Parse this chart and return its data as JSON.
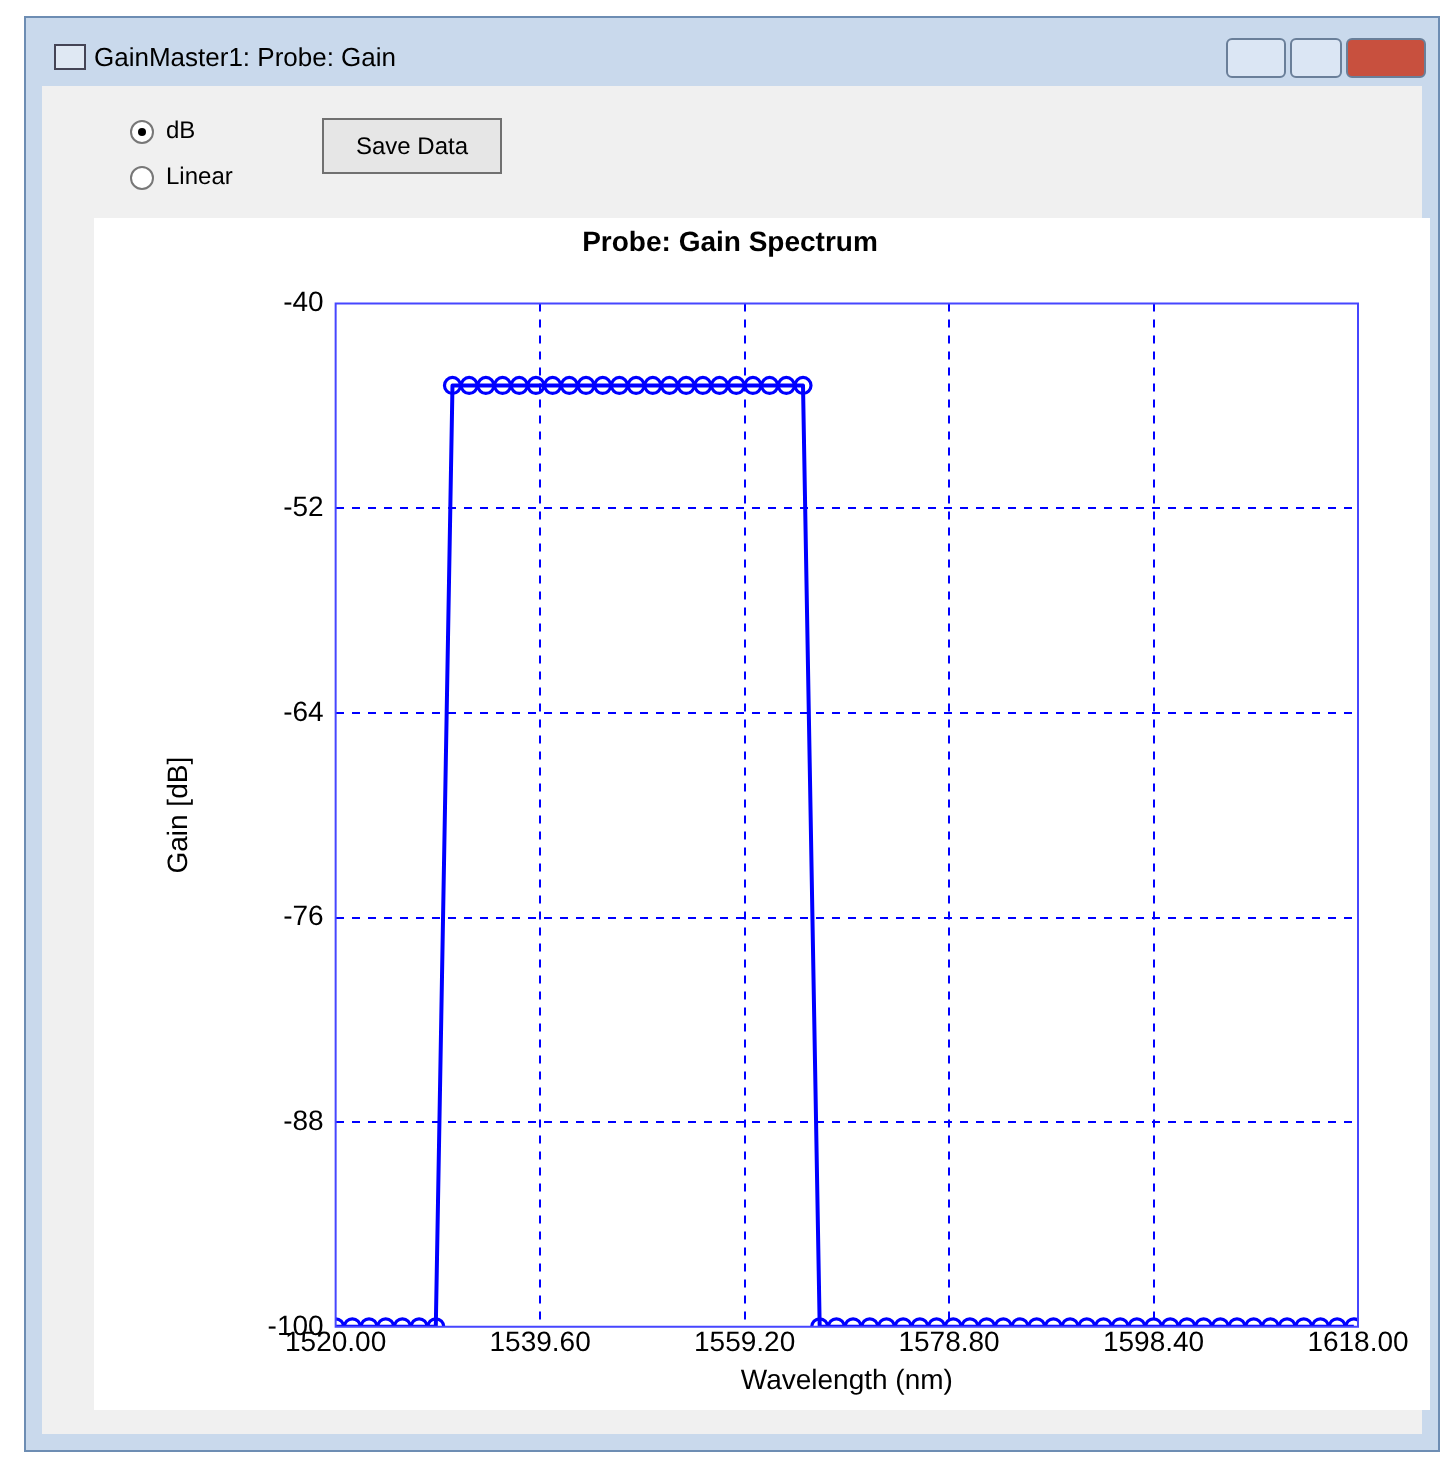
{
  "chart_data": {
    "type": "line",
    "title": "Probe: Gain Spectrum",
    "xlabel": "Wavelength (nm)",
    "ylabel": "Gain [dB]",
    "annotations": [
      "GainMaster1:  Probe:  Gain",
      "dB",
      "Linear",
      "Save Data"
    ],
    "x": [
      1520,
      1521.6,
      1523.2,
      1524.8,
      1526.4,
      1528,
      1529.6,
      1531.2,
      1532.8,
      1534.4,
      1536,
      1537.6,
      1539.2,
      1540.8,
      1542.4,
      1544,
      1545.6,
      1547.2,
      1548.8,
      1550.4,
      1552,
      1553.6,
      1555.2,
      1556.8,
      1558.4,
      1560,
      1561.6,
      1563.2,
      1564.8,
      1566.4,
      1568,
      1569.6,
      1571.2,
      1572.8,
      1574.4,
      1576,
      1577.6,
      1579.2,
      1580.8,
      1582.4,
      1584,
      1585.6,
      1587.2,
      1588.8,
      1590.4,
      1592,
      1593.6,
      1595.2,
      1596.8,
      1598.4,
      1600,
      1601.6,
      1603.2,
      1604.8,
      1606.4,
      1608,
      1609.6,
      1611.2,
      1612.8,
      1614.4,
      1616,
      1617.6
    ],
    "series": [
      {
        "color": "#0000ff",
        "values": [
          -100,
          -100,
          -100,
          -100,
          -100,
          -100,
          -100,
          -44.8,
          -44.8,
          -44.8,
          -44.8,
          -44.8,
          -44.8,
          -44.8,
          -44.8,
          -44.8,
          -44.8,
          -44.8,
          -44.8,
          -44.8,
          -44.8,
          -44.8,
          -44.8,
          -44.8,
          -44.8,
          -44.8,
          -44.8,
          -44.8,
          -44.8,
          -100,
          -100,
          -100,
          -100,
          -100,
          -100,
          -100,
          -100,
          -100,
          -100,
          -100,
          -100,
          -100,
          -100,
          -100,
          -100,
          -100,
          -100,
          -100,
          -100,
          -100,
          -100,
          -100,
          -100,
          -100,
          -100,
          -100,
          -100,
          -100,
          -100,
          -100,
          -100,
          -100
        ]
      }
    ],
    "xlim": [
      1520,
      1618
    ],
    "xticks": [
      {
        "value": 1520,
        "label": "1520.00"
      },
      {
        "value": 1539.6,
        "label": "1539.60"
      },
      {
        "value": 1559.2,
        "label": "1559.20"
      },
      {
        "value": 1578.8,
        "label": "1578.80"
      },
      {
        "value": 1598.4,
        "label": "1598.40"
      },
      {
        "value": 1618,
        "label": "1618.00"
      }
    ],
    "ylim": [
      -100,
      -40
    ],
    "yticks": [
      -40,
      -52,
      -64,
      -76,
      -88,
      -100
    ],
    "grid": true,
    "marker": "circle",
    "line_style": "solid",
    "legend": false
  }
}
